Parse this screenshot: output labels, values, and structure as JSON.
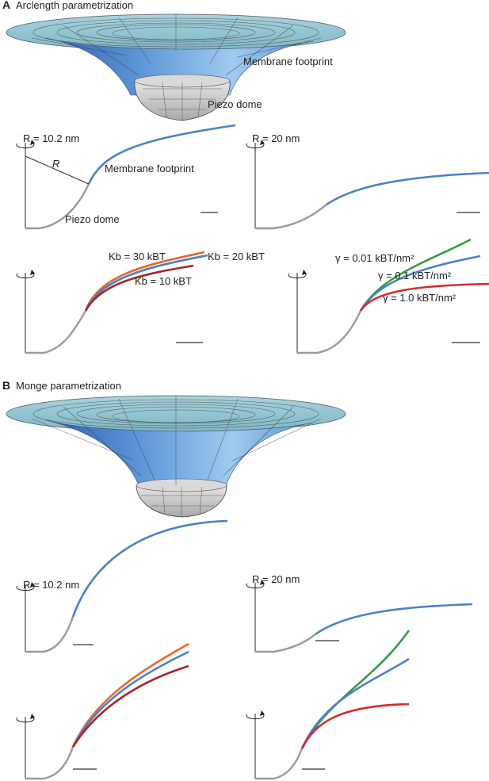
{
  "section_a": {
    "letter": "A",
    "heading": "Arclength parametrization",
    "label_membrane": "Membrane footprint",
    "label_dome": "Piezo dome",
    "radius_small": "R = 10.2 nm",
    "radius_large": "R = 20 nm",
    "radius_symbol": "R",
    "membrane_label_2d": "Membrane footprint",
    "dome_label_2d": "Piezo dome",
    "kb_labels": [
      "Kb = 30 kBT",
      "Kb = 20 kBT",
      "Kb = 10 kBT"
    ],
    "gamma_labels": [
      "γ = 0.01 kBT/nm²",
      "γ = 0.1 kBT/nm²",
      "γ = 1.0 kBT/nm²"
    ]
  },
  "section_b": {
    "letter": "B",
    "heading": "Monge parametrization",
    "radius_small": "R = 10.2 nm",
    "radius_large": "R = 20 nm"
  },
  "colors": {
    "blue": "#4a82c4",
    "orange": "#e8682a",
    "darkred": "#a82525",
    "green": "#3a9a48",
    "red": "#d62a30",
    "grey": "#9a9a9a",
    "surface_top": "#8fc3cf",
    "surface_inner": "#6fa9df",
    "dome": "#c8c8c8"
  }
}
